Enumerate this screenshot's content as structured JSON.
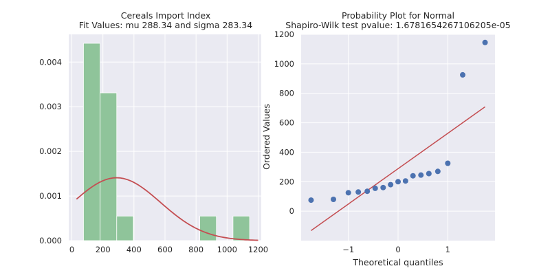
{
  "colors": {
    "panel_bg": "#EAEAF2",
    "grid": "#FFFFFF",
    "hist_bar": "#8FC49A",
    "fit_curve": "#C44E52",
    "scatter": "#4C72B0",
    "ref_line": "#C44E52"
  },
  "chart_data": [
    {
      "type": "bar",
      "title": "Cereals Import Index",
      "subtitle": "Fit Values: mu 288.34 and sigma 283.34",
      "xlabel": "",
      "ylabel": "",
      "xlim": [
        -20,
        1220
      ],
      "ylim": [
        0,
        0.00462
      ],
      "grid": true,
      "x_ticks": [
        0,
        200,
        400,
        600,
        800,
        1000,
        1200
      ],
      "y_ticks": [
        0.0,
        0.001,
        0.002,
        0.003,
        0.004
      ],
      "y_tick_labels": [
        "0.000",
        "0.001",
        "0.002",
        "0.003",
        "0.004"
      ],
      "bins": [
        {
          "start": 75,
          "end": 182,
          "density": 0.00442
        },
        {
          "start": 182,
          "end": 289,
          "density": 0.00331
        },
        {
          "start": 289,
          "end": 396,
          "density": 0.00055
        },
        {
          "start": 396,
          "end": 503,
          "density": 0.0
        },
        {
          "start": 503,
          "end": 610,
          "density": 0.0
        },
        {
          "start": 610,
          "end": 717,
          "density": 0.0
        },
        {
          "start": 717,
          "end": 824,
          "density": 0.0
        },
        {
          "start": 824,
          "end": 931,
          "density": 0.00055
        },
        {
          "start": 931,
          "end": 1038,
          "density": 0.0
        },
        {
          "start": 1038,
          "end": 1145,
          "density": 0.00055
        }
      ],
      "fit": {
        "distribution": "normal",
        "mu": 288.34,
        "sigma": 283.34,
        "x_range": [
          30,
          1200
        ]
      }
    },
    {
      "type": "scatter",
      "title": "Probability Plot for Normal",
      "subtitle": "Shapiro-Wilk test pvalue: 1.6781654267106205e-05",
      "xlabel": "Theoretical quantiles",
      "ylabel": "Ordered Values",
      "xlim": [
        -1.95,
        1.95
      ],
      "ylim": [
        -200,
        1200
      ],
      "grid": true,
      "x_ticks": [
        -1,
        0,
        1
      ],
      "x_tick_labels": [
        "−1",
        "0",
        "1"
      ],
      "y_ticks": [
        0,
        200,
        400,
        600,
        800,
        1000,
        1200
      ],
      "y_tick_labels": [
        "0",
        "200",
        "400",
        "600",
        "800",
        "1000",
        "1200"
      ],
      "points": [
        {
          "x": -1.75,
          "y": 75
        },
        {
          "x": -1.3,
          "y": 80
        },
        {
          "x": -1.0,
          "y": 125
        },
        {
          "x": -0.8,
          "y": 130
        },
        {
          "x": -0.62,
          "y": 135
        },
        {
          "x": -0.46,
          "y": 155
        },
        {
          "x": -0.3,
          "y": 160
        },
        {
          "x": -0.15,
          "y": 180
        },
        {
          "x": 0.0,
          "y": 200
        },
        {
          "x": 0.15,
          "y": 205
        },
        {
          "x": 0.3,
          "y": 240
        },
        {
          "x": 0.46,
          "y": 245
        },
        {
          "x": 0.62,
          "y": 255
        },
        {
          "x": 0.8,
          "y": 270
        },
        {
          "x": 1.0,
          "y": 325
        },
        {
          "x": 1.3,
          "y": 925
        },
        {
          "x": 1.75,
          "y": 1145
        }
      ],
      "fit_line": {
        "slope": 240,
        "intercept": 288.34,
        "x_range": [
          -1.75,
          1.75
        ]
      }
    }
  ]
}
